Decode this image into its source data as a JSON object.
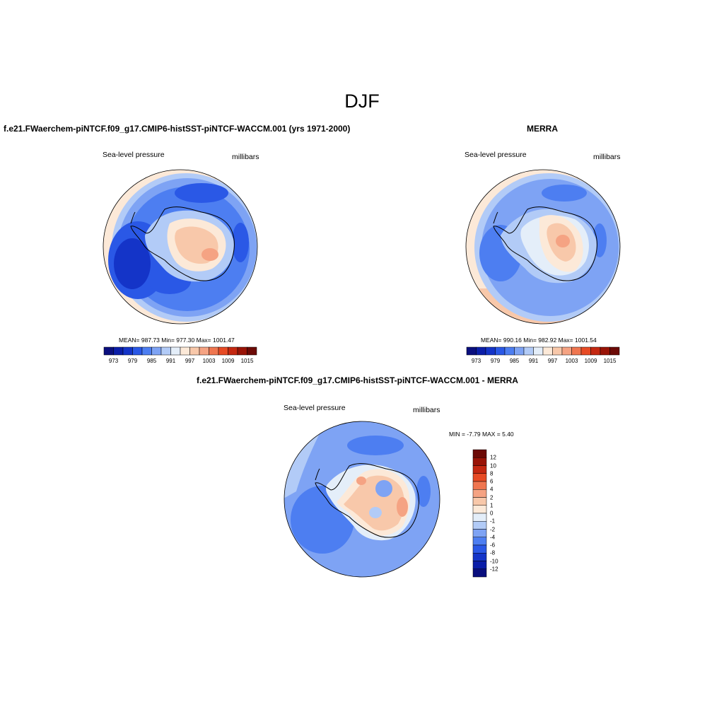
{
  "figure": {
    "title": "DJF"
  },
  "panels": {
    "model": {
      "title": "f.e21.FWaerchem-piNTCF.f09_g17.CMIP6-histSST-piNTCF-WACCM.001 (yrs 1971-2000)",
      "variable": "Sea-level pressure",
      "units": "millibars",
      "stats": "MEAN= 987.73  Min= 977.30  Max= 1001.47"
    },
    "obs": {
      "title": "MERRA",
      "variable": "Sea-level pressure",
      "units": "millibars",
      "stats": "MEAN= 990.16  Min= 982.92  Max= 1001.54"
    },
    "diff": {
      "title": "f.e21.FWaerchem-piNTCF.f09_g17.CMIP6-histSST-piNTCF-WACCM.001 - MERRA",
      "variable": "Sea-level pressure",
      "units": "millibars",
      "stats": "MIN =  -7.79 MAX =   5.40"
    }
  },
  "colorbars": {
    "absolute": {
      "colors": [
        "#0a0f7e",
        "#0b1ea8",
        "#1434c8",
        "#2a58e6",
        "#4d7ef1",
        "#7ea3f4",
        "#b2cbf7",
        "#e4eef9",
        "#fce9d8",
        "#f8c8aa",
        "#f5a383",
        "#ef7650",
        "#e74b25",
        "#c42811",
        "#991407",
        "#6c0a06"
      ],
      "tick_labels": [
        "973",
        "979",
        "985",
        "991",
        "997",
        "1003",
        "1009",
        "1015"
      ]
    },
    "difference": {
      "colors": [
        "#6c0a06",
        "#991407",
        "#c42811",
        "#e74b25",
        "#ef7650",
        "#f5a383",
        "#f8c8aa",
        "#fce9d8",
        "#e4eef9",
        "#b2cbf7",
        "#7ea3f4",
        "#4d7ef1",
        "#2a58e6",
        "#1434c8",
        "#0b1ea8",
        "#0a0f7e"
      ],
      "tick_labels": [
        "12",
        "10",
        "8",
        "6",
        "4",
        "2",
        "1",
        "0",
        "-1",
        "-2",
        "-4",
        "-6",
        "-8",
        "-10",
        "-12"
      ]
    }
  }
}
